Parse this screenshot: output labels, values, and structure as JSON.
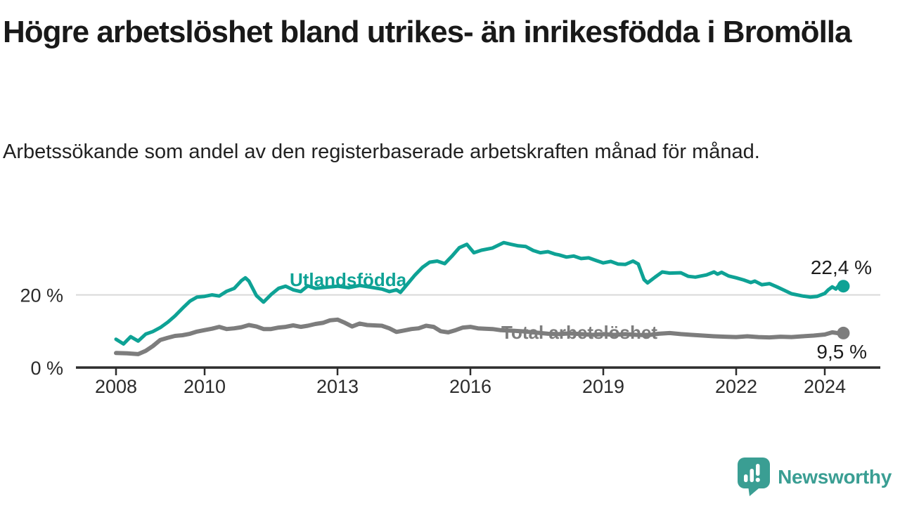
{
  "header": {
    "title": "Högre arbetslöshet bland utrikes- än inrikesfödda i Bromölla",
    "subtitle": "Arbetssökande som andel av den registerbaserade arbetskraften månad för månad."
  },
  "footer": {
    "brand": "Newsworthy",
    "logo_icon": "bar-chart-speech-bubble"
  },
  "colors": {
    "background": "#ffffff",
    "title_text": "#191919",
    "subtitle_text": "#212121",
    "axis": "#2d2d2d",
    "tick_label": "#2b2b2b",
    "gridline": "#d9d9d9",
    "value_label": "#1c1c1c",
    "series_utlandsfodda": "#0ea295",
    "series_total": "#7d7d7d",
    "brand_teal": "#3a9e93"
  },
  "chart_data": {
    "type": "line",
    "title": "Högre arbetslöshet bland utrikes- än inrikesfödda i Bromölla",
    "subtitle": "Arbetssökande som andel av den registerbaserade arbetskraften månad för månad.",
    "unit": "%",
    "grid": "single horizontal gridline at 20 %",
    "legend_position": "inline labels on lines",
    "x_axis": {
      "range": [
        2007.1,
        2025.4
      ],
      "ticks": [
        {
          "value": 2008,
          "label": "2008"
        },
        {
          "value": 2010,
          "label": "2010"
        },
        {
          "value": 2013,
          "label": "2013"
        },
        {
          "value": 2016,
          "label": "2016"
        },
        {
          "value": 2019,
          "label": "2019"
        },
        {
          "value": 2022,
          "label": "2022"
        },
        {
          "value": 2024,
          "label": "2024"
        }
      ]
    },
    "y_axis": {
      "range": [
        0,
        40
      ],
      "ticks": [
        {
          "value": 0,
          "label": "0 %"
        },
        {
          "value": 20,
          "label": "20 %"
        }
      ],
      "gridlines": [
        20
      ]
    },
    "series": [
      {
        "id": "utlandsfodda",
        "name": "Utlandsfödda",
        "color": "#0ea295",
        "stroke_width": 5,
        "end_label": "22,4 %",
        "end_value": 22.4,
        "points": [
          [
            2008.0,
            7.8
          ],
          [
            2008.17,
            6.5
          ],
          [
            2008.33,
            8.5
          ],
          [
            2008.5,
            7.3
          ],
          [
            2008.67,
            9.2
          ],
          [
            2008.83,
            9.9
          ],
          [
            2009.0,
            11.0
          ],
          [
            2009.17,
            12.5
          ],
          [
            2009.33,
            14.2
          ],
          [
            2009.5,
            16.3
          ],
          [
            2009.67,
            18.3
          ],
          [
            2009.83,
            19.4
          ],
          [
            2010.0,
            19.6
          ],
          [
            2010.17,
            20.0
          ],
          [
            2010.33,
            19.7
          ],
          [
            2010.5,
            21.0
          ],
          [
            2010.67,
            21.8
          ],
          [
            2010.83,
            23.9
          ],
          [
            2010.92,
            24.7
          ],
          [
            2011.0,
            23.8
          ],
          [
            2011.17,
            19.8
          ],
          [
            2011.33,
            18.0
          ],
          [
            2011.5,
            20.1
          ],
          [
            2011.67,
            21.8
          ],
          [
            2011.83,
            22.4
          ],
          [
            2012.0,
            21.4
          ],
          [
            2012.17,
            20.9
          ],
          [
            2012.33,
            22.5
          ],
          [
            2012.5,
            21.8
          ],
          [
            2012.75,
            22.1
          ],
          [
            2013.0,
            22.4
          ],
          [
            2013.25,
            22.0
          ],
          [
            2013.5,
            22.6
          ],
          [
            2013.75,
            22.1
          ],
          [
            2014.0,
            21.6
          ],
          [
            2014.17,
            20.9
          ],
          [
            2014.33,
            21.4
          ],
          [
            2014.42,
            20.7
          ],
          [
            2014.58,
            23.0
          ],
          [
            2014.75,
            25.5
          ],
          [
            2014.92,
            27.6
          ],
          [
            2015.08,
            29.0
          ],
          [
            2015.25,
            29.3
          ],
          [
            2015.42,
            28.6
          ],
          [
            2015.58,
            30.6
          ],
          [
            2015.75,
            33.0
          ],
          [
            2015.92,
            33.9
          ],
          [
            2016.08,
            31.6
          ],
          [
            2016.25,
            32.3
          ],
          [
            2016.5,
            32.9
          ],
          [
            2016.75,
            34.4
          ],
          [
            2016.92,
            33.9
          ],
          [
            2017.08,
            33.5
          ],
          [
            2017.25,
            33.3
          ],
          [
            2017.42,
            32.2
          ],
          [
            2017.58,
            31.6
          ],
          [
            2017.75,
            31.9
          ],
          [
            2017.92,
            31.2
          ],
          [
            2018.0,
            31.0
          ],
          [
            2018.17,
            30.4
          ],
          [
            2018.33,
            30.7
          ],
          [
            2018.5,
            30.0
          ],
          [
            2018.67,
            30.2
          ],
          [
            2018.83,
            29.5
          ],
          [
            2019.0,
            28.8
          ],
          [
            2019.17,
            29.2
          ],
          [
            2019.33,
            28.5
          ],
          [
            2019.5,
            28.4
          ],
          [
            2019.67,
            29.3
          ],
          [
            2019.79,
            28.5
          ],
          [
            2019.92,
            24.2
          ],
          [
            2020.0,
            23.3
          ],
          [
            2020.17,
            24.9
          ],
          [
            2020.33,
            26.3
          ],
          [
            2020.5,
            26.0
          ],
          [
            2020.75,
            26.1
          ],
          [
            2020.92,
            25.1
          ],
          [
            2021.08,
            24.9
          ],
          [
            2021.33,
            25.5
          ],
          [
            2021.5,
            26.3
          ],
          [
            2021.58,
            25.7
          ],
          [
            2021.67,
            26.2
          ],
          [
            2021.83,
            25.2
          ],
          [
            2022.0,
            24.7
          ],
          [
            2022.17,
            24.1
          ],
          [
            2022.33,
            23.4
          ],
          [
            2022.42,
            23.8
          ],
          [
            2022.58,
            22.8
          ],
          [
            2022.75,
            23.1
          ],
          [
            2022.92,
            22.2
          ],
          [
            2023.08,
            21.3
          ],
          [
            2023.25,
            20.3
          ],
          [
            2023.5,
            19.7
          ],
          [
            2023.67,
            19.4
          ],
          [
            2023.83,
            19.6
          ],
          [
            2024.0,
            20.4
          ],
          [
            2024.08,
            21.4
          ],
          [
            2024.17,
            22.2
          ],
          [
            2024.25,
            21.6
          ],
          [
            2024.33,
            22.8
          ],
          [
            2024.42,
            22.4
          ]
        ]
      },
      {
        "id": "total",
        "name": "Total arbetslöshet",
        "color": "#7d7d7d",
        "stroke_width": 6,
        "end_label": "9,5 %",
        "end_value": 9.5,
        "points": [
          [
            2008.0,
            4.0
          ],
          [
            2008.25,
            3.9
          ],
          [
            2008.5,
            3.7
          ],
          [
            2008.67,
            4.6
          ],
          [
            2008.83,
            5.9
          ],
          [
            2009.0,
            7.6
          ],
          [
            2009.17,
            8.2
          ],
          [
            2009.33,
            8.7
          ],
          [
            2009.5,
            8.9
          ],
          [
            2009.67,
            9.3
          ],
          [
            2009.83,
            9.9
          ],
          [
            2010.0,
            10.3
          ],
          [
            2010.17,
            10.7
          ],
          [
            2010.33,
            11.2
          ],
          [
            2010.5,
            10.6
          ],
          [
            2010.67,
            10.8
          ],
          [
            2010.83,
            11.1
          ],
          [
            2011.0,
            11.7
          ],
          [
            2011.17,
            11.3
          ],
          [
            2011.33,
            10.6
          ],
          [
            2011.5,
            10.6
          ],
          [
            2011.67,
            11.0
          ],
          [
            2011.83,
            11.2
          ],
          [
            2012.0,
            11.6
          ],
          [
            2012.17,
            11.2
          ],
          [
            2012.33,
            11.5
          ],
          [
            2012.5,
            12.0
          ],
          [
            2012.67,
            12.3
          ],
          [
            2012.83,
            13.0
          ],
          [
            2013.0,
            13.2
          ],
          [
            2013.17,
            12.3
          ],
          [
            2013.33,
            11.3
          ],
          [
            2013.5,
            12.1
          ],
          [
            2013.67,
            11.7
          ],
          [
            2013.83,
            11.6
          ],
          [
            2014.0,
            11.5
          ],
          [
            2014.17,
            10.8
          ],
          [
            2014.33,
            9.8
          ],
          [
            2014.5,
            10.2
          ],
          [
            2014.67,
            10.6
          ],
          [
            2014.83,
            10.8
          ],
          [
            2015.0,
            11.5
          ],
          [
            2015.17,
            11.2
          ],
          [
            2015.33,
            10.0
          ],
          [
            2015.5,
            9.7
          ],
          [
            2015.67,
            10.3
          ],
          [
            2015.83,
            11.0
          ],
          [
            2016.0,
            11.2
          ],
          [
            2016.17,
            10.8
          ],
          [
            2016.33,
            10.7
          ],
          [
            2016.5,
            10.6
          ],
          [
            2016.67,
            10.3
          ],
          [
            2016.83,
            10.2
          ],
          [
            2017.0,
            10.1
          ],
          [
            2017.25,
            9.9
          ],
          [
            2017.5,
            9.6
          ],
          [
            2017.75,
            9.3
          ],
          [
            2018.0,
            9.2
          ],
          [
            2018.25,
            9.4
          ],
          [
            2018.5,
            9.2
          ],
          [
            2018.75,
            9.0
          ],
          [
            2019.0,
            9.2
          ],
          [
            2019.25,
            9.0
          ],
          [
            2019.5,
            9.2
          ],
          [
            2019.75,
            9.0
          ],
          [
            2020.0,
            8.9
          ],
          [
            2020.25,
            9.3
          ],
          [
            2020.5,
            9.5
          ],
          [
            2020.75,
            9.2
          ],
          [
            2021.0,
            9.0
          ],
          [
            2021.25,
            8.8
          ],
          [
            2021.5,
            8.6
          ],
          [
            2021.75,
            8.5
          ],
          [
            2022.0,
            8.4
          ],
          [
            2022.25,
            8.6
          ],
          [
            2022.5,
            8.4
          ],
          [
            2022.75,
            8.3
          ],
          [
            2023.0,
            8.5
          ],
          [
            2023.25,
            8.4
          ],
          [
            2023.5,
            8.6
          ],
          [
            2023.75,
            8.8
          ],
          [
            2024.0,
            9.1
          ],
          [
            2024.17,
            9.7
          ],
          [
            2024.33,
            9.4
          ],
          [
            2024.42,
            9.5
          ]
        ]
      }
    ]
  }
}
